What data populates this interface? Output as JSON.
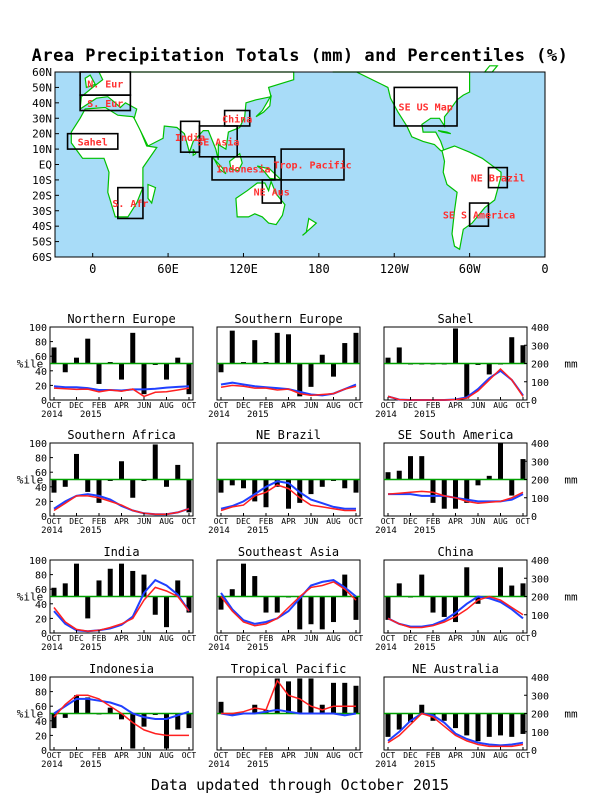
{
  "title": "Area Precipitation Totals (mm) and Percentiles (%)",
  "footer": "Data updated through October 2015",
  "colors": {
    "ocean": "#a8dcf8",
    "land": "#ffffff",
    "coast": "#00c000",
    "box": "#000000",
    "label": "#ff3030",
    "bar": "#000000",
    "actual": "#ff2020",
    "normal": "#2040ff",
    "median": "#00a000"
  },
  "map": {
    "lat_labels": [
      "60N",
      "50N",
      "40N",
      "30N",
      "20N",
      "10N",
      "EQ",
      "10S",
      "20S",
      "30S",
      "40S",
      "50S",
      "60S"
    ],
    "lon_labels": [
      "0",
      "60E",
      "120E",
      "180",
      "120W",
      "60W",
      "0"
    ],
    "regions": [
      {
        "label": "N. Eur",
        "lon": [
          -10,
          30
        ],
        "lat": [
          45,
          60
        ]
      },
      {
        "label": "S. Eur",
        "lon": [
          -10,
          30
        ],
        "lat": [
          35,
          45
        ]
      },
      {
        "label": "Sahel",
        "lon": [
          -20,
          20
        ],
        "lat": [
          10,
          20
        ]
      },
      {
        "label": "S. Afr",
        "lon": [
          20,
          40
        ],
        "lat": [
          -35,
          -15
        ]
      },
      {
        "label": "India",
        "lon": [
          70,
          85
        ],
        "lat": [
          8,
          28
        ]
      },
      {
        "label": "SE Asia",
        "lon": [
          85,
          115
        ],
        "lat": [
          5,
          25
        ]
      },
      {
        "label": "China",
        "lon": [
          105,
          125
        ],
        "lat": [
          25,
          35
        ]
      },
      {
        "label": "Indonesia",
        "lon": [
          95,
          145
        ],
        "lat": [
          -10,
          5
        ]
      },
      {
        "label": "Trop. Pacific",
        "lon": [
          150,
          200
        ],
        "lat": [
          -10,
          10
        ]
      },
      {
        "label": "NE Aus",
        "lon": [
          135,
          150
        ],
        "lat": [
          -25,
          -10
        ]
      },
      {
        "label": "SE US Map",
        "lon": [
          240,
          290
        ],
        "lat": [
          25,
          50
        ]
      },
      {
        "label": "NE Brazil",
        "lon": [
          315,
          330
        ],
        "lat": [
          -15,
          -2
        ]
      },
      {
        "label": "SE S America",
        "lon": [
          300,
          315
        ],
        "lat": [
          -40,
          -25
        ]
      }
    ]
  },
  "axis": {
    "pct_ticks": [
      "0",
      "20",
      "40",
      "60",
      "80",
      "100"
    ],
    "mm_ticks": [
      "0",
      "100",
      "200",
      "300",
      "400"
    ],
    "pct_label": "%ile",
    "mm_label": "mm",
    "month_labels": [
      "OCT",
      "DEC",
      "FEB",
      "APR",
      "JUN",
      "AUG",
      "OCT"
    ],
    "year_labels": [
      "2014",
      "2015"
    ]
  },
  "chart_data": {
    "type": "bar",
    "description_units": {
      "bars": "percentile (%)",
      "lines": "precipitation (mm)"
    },
    "months": [
      "Oct 2014",
      "Nov 2014",
      "Dec 2014",
      "Jan 2015",
      "Feb 2015",
      "Mar 2015",
      "Apr 2015",
      "May 2015",
      "Jun 2015",
      "Jul 2015",
      "Aug 2015",
      "Sep 2015",
      "Oct 2015"
    ],
    "ylim_percentile": [
      0,
      100
    ],
    "ylim_mm": [
      0,
      400
    ],
    "median_percentile": 50,
    "panels": [
      {
        "title": "Northern Europe",
        "percentiles": [
          72,
          38,
          58,
          84,
          22,
          52,
          28,
          92,
          8,
          48,
          28,
          58,
          8
        ],
        "actual_mm": [
          65,
          62,
          58,
          60,
          45,
          55,
          48,
          60,
          20,
          42,
          45,
          55,
          65
        ],
        "normal_mm": [
          75,
          70,
          70,
          65,
          55,
          55,
          52,
          58,
          58,
          62,
          68,
          72,
          75
        ]
      },
      {
        "title": "Southern Europe",
        "percentiles": [
          38,
          95,
          52,
          82,
          52,
          92,
          90,
          5,
          18,
          62,
          32,
          78,
          92
        ],
        "actual_mm": [
          70,
          80,
          75,
          65,
          65,
          55,
          60,
          35,
          25,
          30,
          35,
          60,
          75
        ],
        "normal_mm": [
          85,
          95,
          85,
          75,
          70,
          65,
          60,
          45,
          30,
          25,
          35,
          60,
          85
        ]
      },
      {
        "title": "Sahel",
        "percentiles": [
          58,
          72,
          50,
          50,
          50,
          50,
          98,
          2,
          48,
          35,
          50,
          86,
          75
        ],
        "actual_mm": [
          20,
          2,
          0,
          0,
          0,
          0,
          2,
          10,
          50,
          110,
          170,
          110,
          20
        ],
        "normal_mm": [
          20,
          2,
          0,
          0,
          0,
          0,
          3,
          15,
          60,
          120,
          160,
          110,
          25
        ]
      },
      {
        "title": "Southern Africa",
        "percentiles": [
          32,
          40,
          85,
          33,
          18,
          48,
          75,
          25,
          48,
          98,
          40,
          70,
          5
        ],
        "actual_mm": [
          30,
          70,
          110,
          110,
          100,
          80,
          60,
          30,
          15,
          10,
          10,
          20,
          40
        ],
        "normal_mm": [
          40,
          80,
          110,
          120,
          110,
          90,
          55,
          30,
          15,
          10,
          10,
          20,
          40
        ]
      },
      {
        "title": "NE Brazil",
        "percentiles": [
          32,
          42,
          38,
          20,
          12,
          40,
          10,
          18,
          30,
          40,
          48,
          38,
          32
        ],
        "actual_mm": [
          30,
          50,
          60,
          110,
          130,
          170,
          150,
          100,
          60,
          50,
          40,
          30,
          30
        ],
        "normal_mm": [
          40,
          55,
          80,
          120,
          160,
          190,
          180,
          130,
          90,
          70,
          50,
          40,
          40
        ]
      },
      {
        "title": "SE South America",
        "percentiles": [
          60,
          62,
          82,
          82,
          18,
          10,
          10,
          18,
          42,
          55,
          100,
          28,
          78
        ],
        "actual_mm": [
          120,
          125,
          130,
          135,
          130,
          110,
          100,
          80,
          70,
          75,
          80,
          100,
          130
        ],
        "normal_mm": [
          120,
          120,
          120,
          110,
          110,
          110,
          100,
          90,
          80,
          80,
          80,
          90,
          120
        ]
      },
      {
        "title": "India",
        "percentiles": [
          62,
          68,
          95,
          20,
          72,
          88,
          95,
          85,
          80,
          25,
          8,
          72,
          28
        ],
        "actual_mm": [
          140,
          60,
          20,
          10,
          15,
          30,
          50,
          80,
          180,
          250,
          230,
          200,
          120
        ],
        "normal_mm": [
          120,
          50,
          15,
          10,
          15,
          25,
          45,
          90,
          220,
          290,
          260,
          210,
          120
        ]
      },
      {
        "title": "Southeast Asia",
        "percentiles": [
          32,
          60,
          95,
          78,
          28,
          28,
          50,
          5,
          12,
          5,
          15,
          80,
          18
        ],
        "actual_mm": [
          200,
          120,
          60,
          40,
          50,
          80,
          140,
          200,
          250,
          260,
          280,
          240,
          180
        ],
        "normal_mm": [
          220,
          130,
          70,
          50,
          60,
          80,
          120,
          190,
          260,
          280,
          290,
          250,
          200
        ]
      },
      {
        "title": "China",
        "percentiles": [
          18,
          68,
          50,
          80,
          28,
          22,
          15,
          90,
          40,
          48,
          90,
          65,
          68
        ],
        "actual_mm": [
          80,
          50,
          30,
          30,
          40,
          60,
          90,
          130,
          180,
          200,
          180,
          140,
          100
        ],
        "normal_mm": [
          80,
          50,
          35,
          35,
          45,
          70,
          110,
          160,
          200,
          190,
          170,
          130,
          80
        ]
      },
      {
        "title": "Indonesia",
        "percentiles": [
          30,
          44,
          75,
          72,
          50,
          58,
          42,
          2,
          32,
          48,
          2,
          28,
          30
        ],
        "actual_mm": [
          180,
          250,
          300,
          300,
          280,
          240,
          200,
          150,
          110,
          90,
          80,
          80,
          80
        ],
        "normal_mm": [
          200,
          240,
          280,
          280,
          270,
          260,
          240,
          200,
          180,
          170,
          170,
          190,
          210
        ]
      },
      {
        "title": "Tropical Pacific",
        "percentiles": [
          66,
          48,
          50,
          62,
          55,
          98,
          94,
          98,
          98,
          62,
          92,
          92,
          88
        ],
        "actual_mm": [
          200,
          200,
          210,
          230,
          220,
          380,
          300,
          280,
          240,
          220,
          240,
          240,
          240
        ],
        "normal_mm": [
          200,
          190,
          200,
          200,
          210,
          220,
          210,
          200,
          200,
          200,
          200,
          190,
          200
        ]
      },
      {
        "title": "NE Australia",
        "percentiles": [
          18,
          28,
          38,
          62,
          40,
          40,
          30,
          20,
          12,
          18,
          20,
          18,
          22
        ],
        "actual_mm": [
          40,
          80,
          140,
          200,
          180,
          130,
          80,
          50,
          30,
          20,
          20,
          20,
          30
        ],
        "normal_mm": [
          50,
          100,
          160,
          200,
          190,
          150,
          90,
          60,
          40,
          30,
          25,
          30,
          40
        ]
      }
    ]
  }
}
